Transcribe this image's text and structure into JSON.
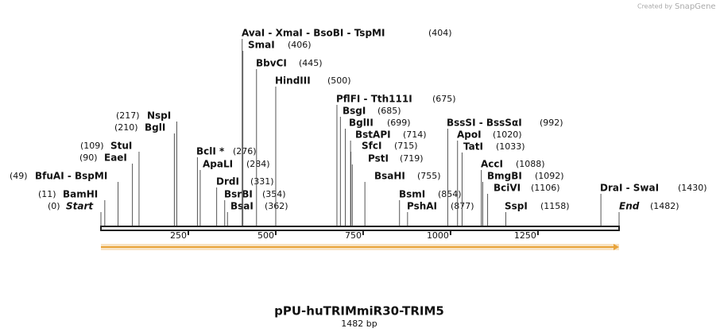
{
  "credit": {
    "prefix": "Created by",
    "brand": "SnapGene"
  },
  "title": "pPU-huTRIMmiR30-TRIM5",
  "length_label": "1482 bp",
  "ruler": {
    "xlim": [
      0,
      1482
    ],
    "ticks": [
      250,
      500,
      750,
      1000,
      1250
    ],
    "color": "#222222"
  },
  "arrow_color": "#e8a33a",
  "sites": [
    {
      "name": "Start",
      "position": 0,
      "position_label": "(0)",
      "italic": true
    },
    {
      "name": "BamHI",
      "position": 11,
      "position_label": "(11)"
    },
    {
      "name": "BfuAI  - BspMI",
      "position": 49,
      "position_label": "(49)"
    },
    {
      "name": "EaeI",
      "position": 90,
      "position_label": "(90)"
    },
    {
      "name": "StuI",
      "position": 109,
      "position_label": "(109)"
    },
    {
      "name": "BglI",
      "position": 210,
      "position_label": "(210)"
    },
    {
      "name": "NspI",
      "position": 217,
      "position_label": "(217)"
    },
    {
      "name": "BclI *",
      "position": 276,
      "position_label": "(276)"
    },
    {
      "name": "ApaLI",
      "position": 284,
      "position_label": "(284)"
    },
    {
      "name": "DrdI",
      "position": 331,
      "position_label": "(331)"
    },
    {
      "name": "BsrBI",
      "position": 354,
      "position_label": "(354)"
    },
    {
      "name": "BsaI",
      "position": 362,
      "position_label": "(362)"
    },
    {
      "name": "AvaI  - XmaI  - BsoBI  - TspMI",
      "position": 404,
      "position_label": "(404)"
    },
    {
      "name": "SmaI",
      "position": 406,
      "position_label": "(406)"
    },
    {
      "name": "BbvCI",
      "position": 445,
      "position_label": "(445)"
    },
    {
      "name": "HindIII",
      "position": 500,
      "position_label": "(500)"
    },
    {
      "name": "PflFI  - Tth111I",
      "position": 675,
      "position_label": "(675)"
    },
    {
      "name": "BsgI",
      "position": 685,
      "position_label": "(685)"
    },
    {
      "name": "BglII",
      "position": 699,
      "position_label": "(699)"
    },
    {
      "name": "BstAPI",
      "position": 714,
      "position_label": "(714)"
    },
    {
      "name": "SfcI",
      "position": 715,
      "position_label": "(715)"
    },
    {
      "name": "PstI",
      "position": 719,
      "position_label": "(719)"
    },
    {
      "name": "BsaHI",
      "position": 755,
      "position_label": "(755)"
    },
    {
      "name": "BsmI",
      "position": 854,
      "position_label": "(854)"
    },
    {
      "name": "PshAI",
      "position": 877,
      "position_label": "(877)"
    },
    {
      "name": "BssSI  - BssSαI",
      "position": 992,
      "position_label": "(992)"
    },
    {
      "name": "ApoI",
      "position": 1020,
      "position_label": "(1020)"
    },
    {
      "name": "TatI",
      "position": 1033,
      "position_label": "(1033)"
    },
    {
      "name": "AccI",
      "position": 1088,
      "position_label": "(1088)"
    },
    {
      "name": "BmgBI",
      "position": 1092,
      "position_label": "(1092)"
    },
    {
      "name": "BciVI",
      "position": 1106,
      "position_label": "(1106)"
    },
    {
      "name": "SspI",
      "position": 1158,
      "position_label": "(1158)"
    },
    {
      "name": "DraI  - SwaI",
      "position": 1430,
      "position_label": "(1430)"
    },
    {
      "name": "End",
      "position": 1482,
      "position_label": "(1482)",
      "italic": true
    }
  ]
}
